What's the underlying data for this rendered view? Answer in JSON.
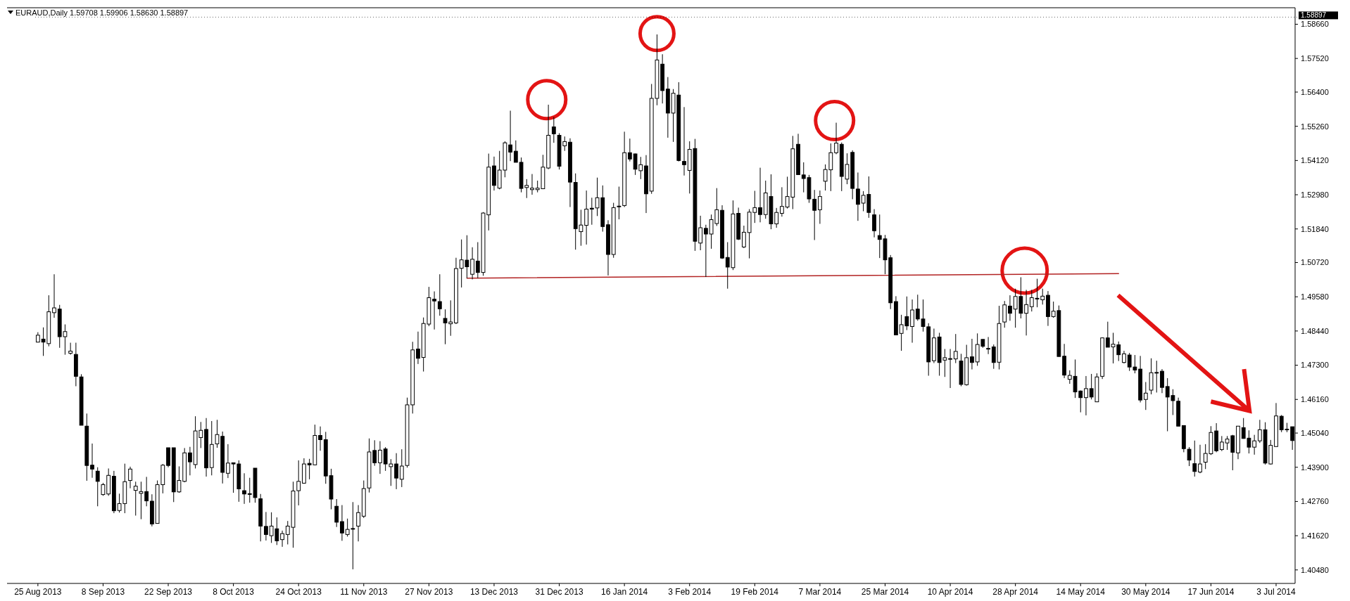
{
  "chart_data": {
    "type": "candlestick",
    "title": "EURAUD,Daily  1.59708 1.59906 1.58630 1.58897",
    "categories": [
      "25 Aug 2013",
      null,
      null,
      null,
      null,
      null,
      null,
      null,
      null,
      null,
      null,
      null,
      "8 Sep 2013",
      null,
      null,
      null,
      null,
      null,
      null,
      null,
      null,
      null,
      null,
      null,
      "22 Sep 2013",
      null,
      null,
      null,
      null,
      null,
      null,
      null,
      null,
      null,
      null,
      null,
      "8 Oct 2013",
      null,
      null,
      null,
      null,
      null,
      null,
      null,
      null,
      null,
      null,
      null,
      "24 Oct 2013",
      null,
      null,
      null,
      null,
      null,
      null,
      null,
      null,
      null,
      null,
      null,
      "11 Nov 2013",
      null,
      null,
      null,
      null,
      null,
      null,
      null,
      null,
      null,
      null,
      null,
      "27 Nov 2013",
      null,
      null,
      null,
      null,
      null,
      null,
      null,
      null,
      null,
      null,
      null,
      "13 Dec 2013",
      null,
      null,
      null,
      null,
      null,
      null,
      null,
      null,
      null,
      null,
      null,
      "31 Dec 2013",
      null,
      null,
      null,
      null,
      null,
      null,
      null,
      null,
      null,
      null,
      null,
      "16 Jan 2014",
      null,
      null,
      null,
      null,
      null,
      null,
      null,
      null,
      null,
      null,
      null,
      "3 Feb 2014",
      null,
      null,
      null,
      null,
      null,
      null,
      null,
      null,
      null,
      null,
      null,
      "19 Feb 2014",
      null,
      null,
      null,
      null,
      null,
      null,
      null,
      null,
      null,
      null,
      null,
      "7 Mar 2014",
      null,
      null,
      null,
      null,
      null,
      null,
      null,
      null,
      null,
      null,
      null,
      "25 Mar 2014",
      null,
      null,
      null,
      null,
      null,
      null,
      null,
      null,
      null,
      null,
      null,
      "10 Apr 2014",
      null,
      null,
      null,
      null,
      null,
      null,
      null,
      null,
      null,
      null,
      null,
      "28 Apr 2014",
      null,
      null,
      null,
      null,
      null,
      null,
      null,
      null,
      null,
      null,
      null,
      "14 May 2014",
      null,
      null,
      null,
      null,
      null,
      null,
      null,
      null,
      null,
      null,
      null,
      "30 May 2014",
      null,
      null,
      null,
      null,
      null,
      null,
      null,
      null,
      null,
      null,
      null,
      "17 Jun 2014",
      null,
      null,
      null,
      null,
      null,
      null,
      null,
      null,
      null,
      null,
      null,
      "3 Jul 2014",
      null,
      null,
      null
    ],
    "ohlc": [
      [
        1.4807,
        1.484,
        1.4806,
        1.483
      ],
      [
        1.4817,
        1.4856,
        1.4761,
        1.4807
      ],
      [
        1.4802,
        1.4963,
        1.4793,
        1.4908
      ],
      [
        1.4905,
        1.5033,
        1.4888,
        1.4921
      ],
      [
        1.4917,
        1.4931,
        1.4788,
        1.4825
      ],
      [
        1.4825,
        1.4866,
        1.4765,
        1.4842
      ],
      [
        1.477,
        1.4805,
        1.4765,
        1.4777
      ],
      [
        1.4766,
        1.4805,
        1.466,
        1.4693
      ],
      [
        1.4691,
        1.47,
        1.453,
        1.453
      ],
      [
        1.4527,
        1.4569,
        1.4345,
        1.4396
      ],
      [
        1.4397,
        1.4469,
        1.4355,
        1.4384
      ],
      [
        1.4377,
        1.439,
        1.426,
        1.4343
      ],
      [
        1.4299,
        1.4338,
        1.4295,
        1.4332
      ],
      [
        1.4301,
        1.4386,
        1.4295,
        1.4363
      ],
      [
        1.436,
        1.4378,
        1.4237,
        1.4245
      ],
      [
        1.4246,
        1.4302,
        1.4239,
        1.4269
      ],
      [
        1.4269,
        1.4402,
        1.4237,
        1.4342
      ],
      [
        1.4346,
        1.4392,
        1.432,
        1.4384
      ],
      [
        1.4313,
        1.4342,
        1.4229,
        1.4327
      ],
      [
        1.4303,
        1.4342,
        1.4217,
        1.4309
      ],
      [
        1.4309,
        1.4358,
        1.426,
        1.4278
      ],
      [
        1.4277,
        1.43,
        1.4193,
        1.4201
      ],
      [
        1.4203,
        1.4346,
        1.4202,
        1.4332
      ],
      [
        1.4332,
        1.4401,
        1.4303,
        1.4397
      ],
      [
        1.4455,
        1.4455,
        1.439,
        1.4396
      ],
      [
        1.4455,
        1.4455,
        1.4274,
        1.4308
      ],
      [
        1.4308,
        1.4393,
        1.4305,
        1.4346
      ],
      [
        1.4343,
        1.4454,
        1.434,
        1.4438
      ],
      [
        1.4438,
        1.4458,
        1.4363,
        1.4408
      ],
      [
        1.4399,
        1.456,
        1.4386,
        1.4511
      ],
      [
        1.4489,
        1.4541,
        1.4454,
        1.4513
      ],
      [
        1.4516,
        1.4554,
        1.4359,
        1.4388
      ],
      [
        1.4389,
        1.4544,
        1.4363,
        1.4466
      ],
      [
        1.4468,
        1.4548,
        1.4455,
        1.4499
      ],
      [
        1.4493,
        1.4509,
        1.4336,
        1.4373
      ],
      [
        1.437,
        1.4467,
        1.4354,
        1.4404
      ],
      [
        1.4405,
        1.4405,
        1.4305,
        1.4401
      ],
      [
        1.4401,
        1.4413,
        1.4275,
        1.4318
      ],
      [
        1.4312,
        1.437,
        1.4268,
        1.4301
      ],
      [
        1.4302,
        1.4355,
        1.4272,
        1.43
      ],
      [
        1.4387,
        1.4387,
        1.4272,
        1.4289
      ],
      [
        1.4285,
        1.4301,
        1.4143,
        1.4194
      ],
      [
        1.4193,
        1.4241,
        1.4146,
        1.4166
      ],
      [
        1.4162,
        1.424,
        1.4138,
        1.4194
      ],
      [
        1.4185,
        1.4223,
        1.4131,
        1.4145
      ],
      [
        1.4149,
        1.4179,
        1.4125,
        1.4169
      ],
      [
        1.4166,
        1.4211,
        1.4133,
        1.4194
      ],
      [
        1.419,
        1.4342,
        1.4122,
        1.4311
      ],
      [
        1.4312,
        1.4413,
        1.4263,
        1.4343
      ],
      [
        1.4337,
        1.442,
        1.4335,
        1.4401
      ],
      [
        1.4403,
        1.4418,
        1.435,
        1.4398
      ],
      [
        1.4398,
        1.4532,
        1.4397,
        1.4496
      ],
      [
        1.4496,
        1.4526,
        1.4445,
        1.4482
      ],
      [
        1.4482,
        1.4508,
        1.4335,
        1.4361
      ],
      [
        1.4362,
        1.4385,
        1.425,
        1.4284
      ],
      [
        1.426,
        1.4284,
        1.4191,
        1.4207
      ],
      [
        1.4209,
        1.4264,
        1.4145,
        1.4171
      ],
      [
        1.4166,
        1.4219,
        1.4159,
        1.4183
      ],
      [
        1.4186,
        1.4274,
        1.405,
        1.4186
      ],
      [
        1.4194,
        1.4264,
        1.4143,
        1.4239
      ],
      [
        1.4227,
        1.4346,
        1.4221,
        1.4319
      ],
      [
        1.4321,
        1.4486,
        1.4306,
        1.4441
      ],
      [
        1.4446,
        1.448,
        1.4395,
        1.4405
      ],
      [
        1.4405,
        1.4477,
        1.4368,
        1.4447
      ],
      [
        1.4451,
        1.4457,
        1.4378,
        1.4401
      ],
      [
        1.4392,
        1.4417,
        1.4328,
        1.4401
      ],
      [
        1.4401,
        1.4437,
        1.4317,
        1.4354
      ],
      [
        1.435,
        1.445,
        1.4324,
        1.4394
      ],
      [
        1.4396,
        1.4622,
        1.4389,
        1.4598
      ],
      [
        1.4598,
        1.4808,
        1.4569,
        1.4781
      ],
      [
        1.4784,
        1.4842,
        1.4734,
        1.4753
      ],
      [
        1.4756,
        1.4889,
        1.4709,
        1.4869
      ],
      [
        1.4867,
        1.4991,
        1.486,
        1.4955
      ],
      [
        1.495,
        1.4976,
        1.4849,
        1.4944
      ],
      [
        1.4942,
        1.5033,
        1.4895,
        1.4918
      ],
      [
        1.4886,
        1.4916,
        1.48,
        1.4871
      ],
      [
        1.4868,
        1.4946,
        1.4828,
        1.4874
      ],
      [
        1.4871,
        1.5088,
        1.4867,
        1.5052
      ],
      [
        1.5053,
        1.5149,
        1.4989,
        1.5081
      ],
      [
        1.508,
        1.5163,
        1.502,
        1.5058
      ],
      [
        1.5033,
        1.5123,
        1.5016,
        1.5083
      ],
      [
        1.5077,
        1.514,
        1.502,
        1.5039
      ],
      [
        1.5039,
        1.524,
        1.5028,
        1.5237
      ],
      [
        1.5231,
        1.5435,
        1.5179,
        1.539
      ],
      [
        1.5394,
        1.5425,
        1.5312,
        1.5329
      ],
      [
        1.532,
        1.5444,
        1.5316,
        1.538
      ],
      [
        1.538,
        1.5476,
        1.5356,
        1.5471
      ],
      [
        1.5464,
        1.5578,
        1.541,
        1.544
      ],
      [
        1.5443,
        1.5479,
        1.5406,
        1.5406
      ],
      [
        1.5406,
        1.5422,
        1.5306,
        1.5319
      ],
      [
        1.5322,
        1.535,
        1.5287,
        1.5329
      ],
      [
        1.5315,
        1.5367,
        1.5298,
        1.532
      ],
      [
        1.5315,
        1.5345,
        1.5306,
        1.532
      ],
      [
        1.5318,
        1.5431,
        1.5318,
        1.539
      ],
      [
        1.5387,
        1.5598,
        1.5383,
        1.5496
      ],
      [
        1.5524,
        1.5557,
        1.5471,
        1.5501
      ],
      [
        1.5496,
        1.5503,
        1.5382,
        1.5393
      ],
      [
        1.5461,
        1.5492,
        1.5444,
        1.5475
      ],
      [
        1.5473,
        1.5486,
        1.5257,
        1.534
      ],
      [
        1.5339,
        1.5369,
        1.5115,
        1.5185
      ],
      [
        1.5175,
        1.5248,
        1.5128,
        1.5197
      ],
      [
        1.5196,
        1.5312,
        1.5132,
        1.525
      ],
      [
        1.5253,
        1.5288,
        1.5198,
        1.525
      ],
      [
        1.5254,
        1.5355,
        1.5227,
        1.5288
      ],
      [
        1.5288,
        1.5329,
        1.5175,
        1.5192
      ],
      [
        1.5198,
        1.5213,
        1.5029,
        1.5099
      ],
      [
        1.5099,
        1.5271,
        1.5088,
        1.5255
      ],
      [
        1.5258,
        1.5325,
        1.5216,
        1.526
      ],
      [
        1.5262,
        1.5508,
        1.5257,
        1.5438
      ],
      [
        1.5438,
        1.5485,
        1.5409,
        1.5417
      ],
      [
        1.5434,
        1.5435,
        1.5364,
        1.5383
      ],
      [
        1.5378,
        1.5424,
        1.535,
        1.5398
      ],
      [
        1.5394,
        1.543,
        1.5237,
        1.5301
      ],
      [
        1.531,
        1.5667,
        1.5301,
        1.5619
      ],
      [
        1.5619,
        1.5832,
        1.5596,
        1.5747
      ],
      [
        1.5733,
        1.5766,
        1.5602,
        1.5645
      ],
      [
        1.565,
        1.569,
        1.5488,
        1.557
      ],
      [
        1.557,
        1.565,
        1.5474,
        1.5636
      ],
      [
        1.563,
        1.5673,
        1.5409,
        1.5412
      ],
      [
        1.5409,
        1.559,
        1.5362,
        1.5398
      ],
      [
        1.5379,
        1.5476,
        1.5302,
        1.5449
      ],
      [
        1.5452,
        1.5484,
        1.5111,
        1.5143
      ],
      [
        1.5137,
        1.5228,
        1.5113,
        1.5188
      ],
      [
        1.5186,
        1.5198,
        1.5024,
        1.5167
      ],
      [
        1.5167,
        1.5232,
        1.5118,
        1.5215
      ],
      [
        1.5202,
        1.532,
        1.5194,
        1.5248
      ],
      [
        1.5246,
        1.5263,
        1.5084,
        1.5087
      ],
      [
        1.5089,
        1.514,
        1.4985,
        1.5057
      ],
      [
        1.5055,
        1.5279,
        1.5047,
        1.5234
      ],
      [
        1.5236,
        1.5255,
        1.5147,
        1.515
      ],
      [
        1.5124,
        1.5195,
        1.512,
        1.5173
      ],
      [
        1.5172,
        1.525,
        1.5086,
        1.524
      ],
      [
        1.5239,
        1.5311,
        1.5204,
        1.5255
      ],
      [
        1.5255,
        1.5388,
        1.5206,
        1.5232
      ],
      [
        1.5232,
        1.5345,
        1.5218,
        1.5304
      ],
      [
        1.5292,
        1.5366,
        1.5183,
        1.5201
      ],
      [
        1.5201,
        1.5254,
        1.5188,
        1.5239
      ],
      [
        1.5236,
        1.5323,
        1.5225,
        1.5259
      ],
      [
        1.5257,
        1.5358,
        1.5252,
        1.5292
      ],
      [
        1.529,
        1.5494,
        1.525,
        1.5451
      ],
      [
        1.5466,
        1.5501,
        1.5364,
        1.5365
      ],
      [
        1.5364,
        1.5406,
        1.5306,
        1.5352
      ],
      [
        1.5355,
        1.5364,
        1.5271,
        1.5284
      ],
      [
        1.5283,
        1.5314,
        1.5147,
        1.5246
      ],
      [
        1.5248,
        1.5312,
        1.5201,
        1.5292
      ],
      [
        1.5343,
        1.5399,
        1.5312,
        1.5382
      ],
      [
        1.5381,
        1.5469,
        1.531,
        1.5438
      ],
      [
        1.5438,
        1.5538,
        1.5433,
        1.547
      ],
      [
        1.5466,
        1.5472,
        1.531,
        1.5359
      ],
      [
        1.535,
        1.5436,
        1.5333,
        1.5399
      ],
      [
        1.5439,
        1.5446,
        1.5283,
        1.5319
      ],
      [
        1.5317,
        1.5372,
        1.5211,
        1.5266
      ],
      [
        1.527,
        1.531,
        1.5243,
        1.5296
      ],
      [
        1.5299,
        1.5359,
        1.5221,
        1.5239
      ],
      [
        1.5231,
        1.525,
        1.5156,
        1.5178
      ],
      [
        1.5162,
        1.5232,
        1.5087,
        1.5149
      ],
      [
        1.5151,
        1.5164,
        1.5033,
        1.5081
      ],
      [
        1.5088,
        1.5097,
        1.4917,
        1.4938
      ],
      [
        1.4942,
        1.496,
        1.483,
        1.4831
      ],
      [
        1.4836,
        1.4898,
        1.4778,
        1.4865
      ],
      [
        1.4892,
        1.4959,
        1.4847,
        1.4861
      ],
      [
        1.4859,
        1.4949,
        1.4805,
        1.4914
      ],
      [
        1.4917,
        1.4965,
        1.4878,
        1.4884
      ],
      [
        1.4884,
        1.4949,
        1.4842,
        1.4859
      ],
      [
        1.4858,
        1.487,
        1.4695,
        1.4741
      ],
      [
        1.4745,
        1.4852,
        1.4737,
        1.4821
      ],
      [
        1.4824,
        1.4838,
        1.4695,
        1.4739
      ],
      [
        1.4747,
        1.4784,
        1.4691,
        1.4755
      ],
      [
        1.4752,
        1.4784,
        1.4654,
        1.4752
      ],
      [
        1.4751,
        1.4834,
        1.4737,
        1.4776
      ],
      [
        1.4744,
        1.4768,
        1.466,
        1.4666
      ],
      [
        1.4665,
        1.4798,
        1.4662,
        1.4755
      ],
      [
        1.4758,
        1.4818,
        1.4716,
        1.4739
      ],
      [
        1.4741,
        1.4836,
        1.4728,
        1.4799
      ],
      [
        1.4816,
        1.4816,
        1.4788,
        1.4793
      ],
      [
        1.4786,
        1.4824,
        1.4767,
        1.4786
      ],
      [
        1.4791,
        1.4799,
        1.4718,
        1.4739
      ],
      [
        1.474,
        1.4928,
        1.4716,
        1.4869
      ],
      [
        1.4874,
        1.4944,
        1.4855,
        1.4931
      ],
      [
        1.4927,
        1.4963,
        1.4878,
        1.4903
      ],
      [
        1.4917,
        1.4985,
        1.4855,
        1.4959
      ],
      [
        1.4959,
        1.5023,
        1.4886,
        1.4903
      ],
      [
        1.4903,
        1.4981,
        1.4829,
        1.4932
      ],
      [
        1.4925,
        1.4981,
        1.4909,
        1.4955
      ],
      [
        1.4953,
        1.5018,
        1.4923,
        1.4951
      ],
      [
        1.4948,
        1.4985,
        1.4932,
        1.496
      ],
      [
        1.4963,
        1.4977,
        1.4861,
        1.4892
      ],
      [
        1.4892,
        1.4942,
        1.4888,
        1.491
      ],
      [
        1.4912,
        1.4929,
        1.4759,
        1.4759
      ],
      [
        1.476,
        1.4801,
        1.4687,
        1.4697
      ],
      [
        1.4683,
        1.4713,
        1.4668,
        1.4696
      ],
      [
        1.4693,
        1.4749,
        1.4621,
        1.4641
      ],
      [
        1.4644,
        1.4646,
        1.4573,
        1.4622
      ],
      [
        1.4622,
        1.4694,
        1.4563,
        1.4652
      ],
      [
        1.4652,
        1.4701,
        1.4616,
        1.4624
      ],
      [
        1.4608,
        1.4703,
        1.4608,
        1.4691
      ],
      [
        1.4693,
        1.4823,
        1.4684,
        1.4821
      ],
      [
        1.4821,
        1.4875,
        1.479,
        1.479
      ],
      [
        1.4791,
        1.4838,
        1.4736,
        1.48
      ],
      [
        1.4798,
        1.4809,
        1.4744,
        1.4765
      ],
      [
        1.4739,
        1.4778,
        1.4736,
        1.4768
      ],
      [
        1.4764,
        1.4771,
        1.4711,
        1.4724
      ],
      [
        1.4724,
        1.4764,
        1.4703,
        1.4714
      ],
      [
        1.4717,
        1.4761,
        1.4606,
        1.4614
      ],
      [
        1.4616,
        1.4674,
        1.4581,
        1.4637
      ],
      [
        1.4647,
        1.4753,
        1.4633,
        1.4705
      ],
      [
        1.4706,
        1.4745,
        1.4639,
        1.4706
      ],
      [
        1.471,
        1.4717,
        1.4637,
        1.4656
      ],
      [
        1.4659,
        1.4687,
        1.451,
        1.4624
      ],
      [
        1.4629,
        1.465,
        1.4564,
        1.4612
      ],
      [
        1.461,
        1.4622,
        1.4527,
        1.4527
      ],
      [
        1.4529,
        1.4529,
        1.444,
        1.4452
      ],
      [
        1.445,
        1.4457,
        1.4394,
        1.4414
      ],
      [
        1.4402,
        1.4479,
        1.4359,
        1.4376
      ],
      [
        1.4374,
        1.4465,
        1.437,
        1.4401
      ],
      [
        1.4407,
        1.4467,
        1.4384,
        1.4436
      ],
      [
        1.4435,
        1.4527,
        1.4431,
        1.4506
      ],
      [
        1.4511,
        1.4537,
        1.444,
        1.4445
      ],
      [
        1.4449,
        1.4494,
        1.4444,
        1.4474
      ],
      [
        1.4471,
        1.4494,
        1.4448,
        1.4484
      ],
      [
        1.4495,
        1.4498,
        1.438,
        1.444
      ],
      [
        1.4438,
        1.4527,
        1.4417,
        1.4527
      ],
      [
        1.4522,
        1.4554,
        1.4485,
        1.4486
      ],
      [
        1.4487,
        1.4513,
        1.4436,
        1.4457
      ],
      [
        1.4457,
        1.4498,
        1.4432,
        1.4478
      ],
      [
        1.4478,
        1.4548,
        1.4471,
        1.4515
      ],
      [
        1.4515,
        1.454,
        1.4399,
        1.4404
      ],
      [
        1.4401,
        1.4481,
        1.4399,
        1.4463
      ],
      [
        1.4459,
        1.4604,
        1.4459,
        1.4561
      ],
      [
        1.456,
        1.4564,
        1.4507,
        1.4515
      ],
      [
        1.4515,
        1.4538,
        1.4507,
        1.4517
      ],
      [
        1.4525,
        1.4525,
        1.4448,
        1.4479
      ]
    ],
    "color": "#000000",
    "series": [
      {
        "type": "line",
        "color": "#b22222",
        "values": [
          null,
          null,
          null,
          null,
          null,
          null,
          null,
          null,
          null,
          null,
          null,
          null,
          null,
          null,
          null,
          null,
          null,
          null,
          null,
          null,
          null,
          null,
          null,
          null,
          null,
          null,
          null,
          null,
          null,
          null,
          null,
          null,
          null,
          null,
          null,
          null,
          null,
          null,
          null,
          null,
          null,
          null,
          null,
          null,
          null,
          null,
          null,
          null,
          null,
          null,
          null,
          null,
          null,
          null,
          null,
          null,
          null,
          null,
          null,
          null,
          null,
          null,
          null,
          null,
          null,
          null,
          null,
          null,
          null,
          null,
          null,
          null,
          null,
          null,
          null,
          null,
          null,
          null,
          null,
          1.502,
          null,
          null,
          null,
          null,
          null,
          null,
          null,
          null,
          null,
          null,
          null,
          null,
          null,
          null,
          null,
          null,
          null,
          null,
          null,
          null,
          null,
          null,
          null,
          null,
          null,
          null,
          null,
          null,
          null,
          null,
          null,
          null,
          null,
          null,
          null,
          null,
          null,
          null,
          null,
          null,
          null,
          null,
          null,
          null,
          null,
          null,
          null,
          null,
          null,
          null,
          null,
          null,
          null,
          null,
          null,
          null,
          null,
          null,
          null,
          null,
          null,
          null,
          null,
          null,
          null,
          null,
          null,
          null,
          null,
          null,
          null,
          null,
          null,
          null,
          null,
          null,
          null,
          null,
          null,
          null,
          null,
          null,
          null,
          null,
          null,
          null,
          null,
          null,
          null,
          null,
          null,
          null,
          null,
          null,
          null,
          null,
          null,
          null,
          null,
          null,
          null,
          null,
          null,
          null,
          null,
          null,
          null,
          null,
          null,
          null,
          null,
          null,
          null,
          null,
          null,
          null,
          null,
          null,
          null,
          1.5035,
          null,
          null,
          null,
          null,
          null,
          null,
          null,
          null,
          null,
          null,
          null,
          null,
          null,
          null,
          null,
          null,
          null,
          null,
          null,
          null,
          null,
          null,
          null,
          null,
          null,
          null,
          null,
          null,
          null,
          null,
          null,
          null
        ]
      }
    ],
    "ylim": [
      1.4003,
      1.5921
    ],
    "yticks": [
      {
        "value": 1.5866,
        "label": "1.58660"
      },
      {
        "value": 1.5752,
        "label": "1.57520"
      },
      {
        "value": 1.564,
        "label": "1.56400"
      },
      {
        "value": 1.5526,
        "label": "1.55260"
      },
      {
        "value": 1.5412,
        "label": "1.54120"
      },
      {
        "value": 1.5298,
        "label": "1.52980"
      },
      {
        "value": 1.5184,
        "label": "1.51840"
      },
      {
        "value": 1.5072,
        "label": "1.50720"
      },
      {
        "value": 1.4958,
        "label": "1.49580"
      },
      {
        "value": 1.4844,
        "label": "1.48440"
      },
      {
        "value": 1.473,
        "label": "1.47300"
      },
      {
        "value": 1.4616,
        "label": "1.46160"
      },
      {
        "value": 1.4504,
        "label": "1.45040"
      },
      {
        "value": 1.439,
        "label": "1.43900"
      },
      {
        "value": 1.4276,
        "label": "1.42760"
      },
      {
        "value": 1.4162,
        "label": "1.41620"
      },
      {
        "value": 1.4048,
        "label": "1.40480"
      }
    ],
    "ref_lines": [
      {
        "axis": "y",
        "value": 1.58897,
        "label": "1.58897",
        "color": "#000000"
      }
    ]
  }
}
